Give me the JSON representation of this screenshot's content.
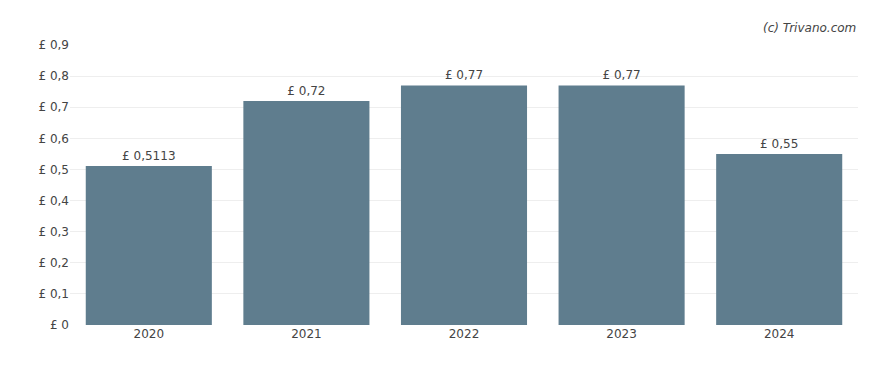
{
  "chart_data": {
    "type": "bar",
    "categories": [
      "2020",
      "2021",
      "2022",
      "2023",
      "2024"
    ],
    "values": [
      0.5113,
      0.72,
      0.77,
      0.77,
      0.55
    ],
    "value_labels": [
      "£ 0,5113",
      "£ 0,72",
      "£ 0,77",
      "£ 0,77",
      "£ 0,55"
    ],
    "data_labels": true,
    "color": "#5f7d8e",
    "ylim": [
      0,
      0.9
    ],
    "yticks": [
      {
        "value": 0,
        "label": "£ 0"
      },
      {
        "value": 0.1,
        "label": "£ 0,1"
      },
      {
        "value": 0.2,
        "label": "£ 0,2"
      },
      {
        "value": 0.3,
        "label": "£ 0,3"
      },
      {
        "value": 0.4,
        "label": "£ 0,4"
      },
      {
        "value": 0.5,
        "label": "£ 0,5"
      },
      {
        "value": 0.6,
        "label": "£ 0,6"
      },
      {
        "value": 0.7,
        "label": "£ 0,7"
      },
      {
        "value": 0.8,
        "label": "£ 0,8"
      },
      {
        "value": 0.9,
        "label": "£ 0,9"
      }
    ],
    "grid": true,
    "annotations": [
      "(c) Trivano.com"
    ]
  }
}
